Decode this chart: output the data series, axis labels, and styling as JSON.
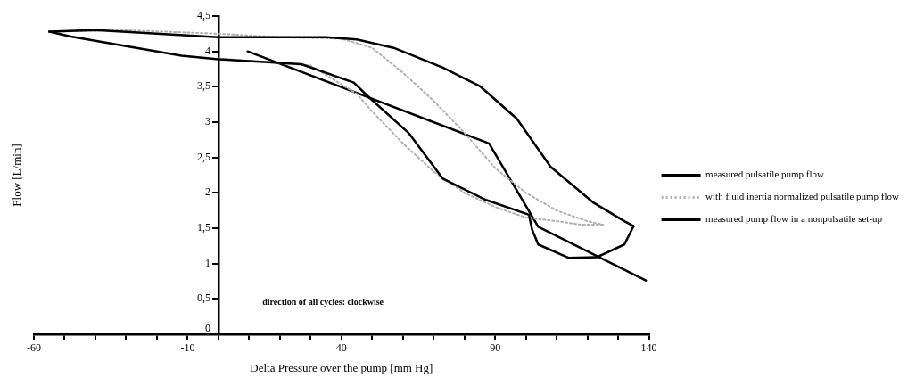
{
  "chart_data": {
    "type": "line",
    "xlabel": "Delta Pressure over the pump [mm Hg]",
    "ylabel": "Flow [L/min]",
    "annotations": [
      "direction of all cycles: clockwise"
    ],
    "xlim": [
      -60,
      140
    ],
    "xticks": [
      -60,
      {
        "value": -50,
        "label": null
      },
      {
        "value": -40,
        "label": null
      },
      {
        "value": -30,
        "label": null
      },
      {
        "value": -20,
        "label": null
      },
      -10,
      {
        "value": 0,
        "label": null
      },
      {
        "value": 10,
        "label": null
      },
      {
        "value": 20,
        "label": null
      },
      {
        "value": 30,
        "label": null
      },
      40,
      {
        "value": 50,
        "label": null
      },
      {
        "value": 60,
        "label": null
      },
      {
        "value": 70,
        "label": null
      },
      {
        "value": 80,
        "label": null
      },
      90,
      {
        "value": 100,
        "label": null
      },
      {
        "value": 110,
        "label": null
      },
      {
        "value": 120,
        "label": null
      },
      {
        "value": 130,
        "label": null
      },
      140
    ],
    "ylim": [
      0,
      4.5
    ],
    "yticks": [
      0,
      {
        "value": 0.5,
        "label": "0,5"
      },
      1,
      {
        "value": 1.5,
        "label": "1,5"
      },
      2,
      {
        "value": 2.5,
        "label": "2,5"
      },
      3,
      {
        "value": 3.5,
        "label": "3,5"
      },
      4,
      {
        "value": 4.5,
        "label": "4,5"
      }
    ],
    "grid": false,
    "legend": "right",
    "marker": "none",
    "series": [
      {
        "name": "measured pulsatile pump flow",
        "color": "#000000",
        "line_style": "solid",
        "x": [
          -55,
          -40,
          -20,
          0,
          20,
          35,
          45,
          57,
          73,
          85,
          97,
          108,
          122,
          132,
          135
        ],
        "values": [
          4.28,
          4.3,
          4.25,
          4.2,
          4.2,
          4.2,
          4.17,
          4.05,
          3.77,
          3.51,
          3.05,
          2.37,
          1.86,
          1.6,
          1.53
        ]
      },
      {
        "color": "#000000",
        "line_style": "solid",
        "x": [
          135,
          132,
          123,
          114,
          104,
          102,
          101,
          87,
          73,
          62,
          49,
          44,
          27,
          0,
          -12,
          -48,
          -55
        ],
        "values": [
          1.53,
          1.27,
          1.09,
          1.08,
          1.27,
          1.48,
          1.69,
          1.9,
          2.2,
          2.84,
          3.35,
          3.56,
          3.82,
          3.89,
          3.94,
          4.21,
          4.28
        ]
      },
      {
        "name": "with fluid inertia normalized pulsatile pump flow",
        "color": "#b0b0b0",
        "line_style": "dotted",
        "x": [
          -55,
          -30,
          0,
          20,
          40,
          50,
          60,
          70,
          80,
          90,
          100,
          110,
          120,
          125
        ],
        "values": [
          4.28,
          4.3,
          4.25,
          4.2,
          4.18,
          4.05,
          3.7,
          3.3,
          2.85,
          2.35,
          2.0,
          1.75,
          1.6,
          1.55
        ]
      },
      {
        "color": "#b0b0b0",
        "line_style": "dotted",
        "x": [
          125,
          118,
          110,
          100,
          90,
          80,
          70,
          60,
          50,
          45,
          30,
          0
        ],
        "values": [
          1.55,
          1.55,
          1.6,
          1.65,
          1.8,
          2.0,
          2.3,
          2.7,
          3.15,
          3.4,
          3.8,
          3.9
        ]
      },
      {
        "name": "measured pump flow in a nonpulsatile set-up",
        "color": "#000000",
        "line_style": "solid",
        "x": [
          9.5,
          88,
          104,
          139
        ],
        "values": [
          4.0,
          2.7,
          1.52,
          0.76
        ]
      }
    ]
  }
}
